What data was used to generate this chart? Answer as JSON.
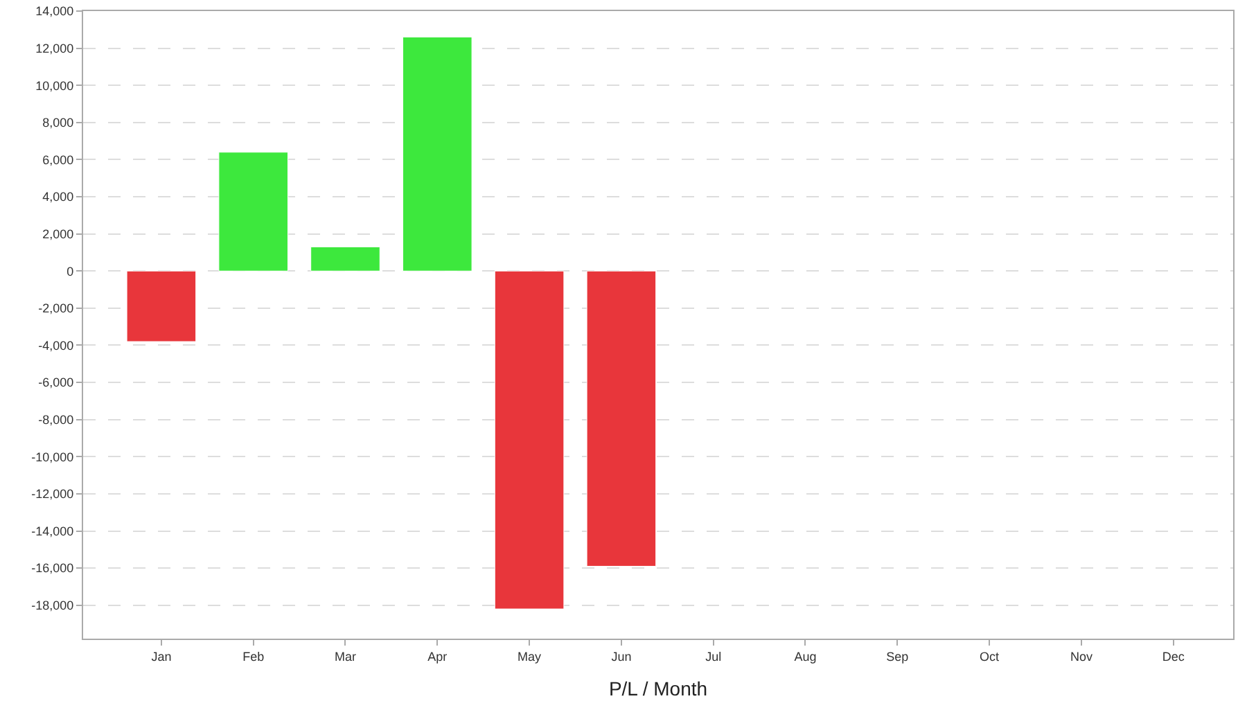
{
  "chart_data": {
    "type": "bar",
    "xlabel": "P/L / Month",
    "categories": [
      "Jan",
      "Feb",
      "Mar",
      "Apr",
      "May",
      "Jun",
      "Jul",
      "Aug",
      "Sep",
      "Oct",
      "Nov",
      "Dec"
    ],
    "values": [
      -3800,
      6400,
      1300,
      12600,
      -18200,
      -15900,
      null,
      null,
      null,
      null,
      null,
      null
    ],
    "colors": [
      "#e8363b",
      "#3de83d",
      "#3de83d",
      "#3de83d",
      "#e8363b",
      "#e8363b",
      "#e8363b",
      "#e8363b",
      "#e8363b",
      "#e8363b",
      "#e8363b",
      "#e8363b"
    ],
    "ylim": [
      -19800,
      14000
    ],
    "yticks": [
      {
        "value": -18000,
        "label": "-18,000"
      },
      {
        "value": -16000,
        "label": "-16,000"
      },
      {
        "value": -14000,
        "label": "-14,000"
      },
      {
        "value": -12000,
        "label": "-12,000"
      },
      {
        "value": -10000,
        "label": "-10,000"
      },
      {
        "value": -8000,
        "label": "-8,000"
      },
      {
        "value": -6000,
        "label": "-6,000"
      },
      {
        "value": -4000,
        "label": "-4,000"
      },
      {
        "value": -2000,
        "label": "-2,000"
      },
      0,
      {
        "value": 2000,
        "label": "2,000"
      },
      {
        "value": 4000,
        "label": "4,000"
      },
      {
        "value": 6000,
        "label": "6,000"
      },
      {
        "value": 8000,
        "label": "8,000"
      },
      {
        "value": 10000,
        "label": "10,000"
      },
      {
        "value": 12000,
        "label": "12,000"
      },
      {
        "value": 14000,
        "label": "14,000"
      }
    ],
    "grid": "y"
  }
}
